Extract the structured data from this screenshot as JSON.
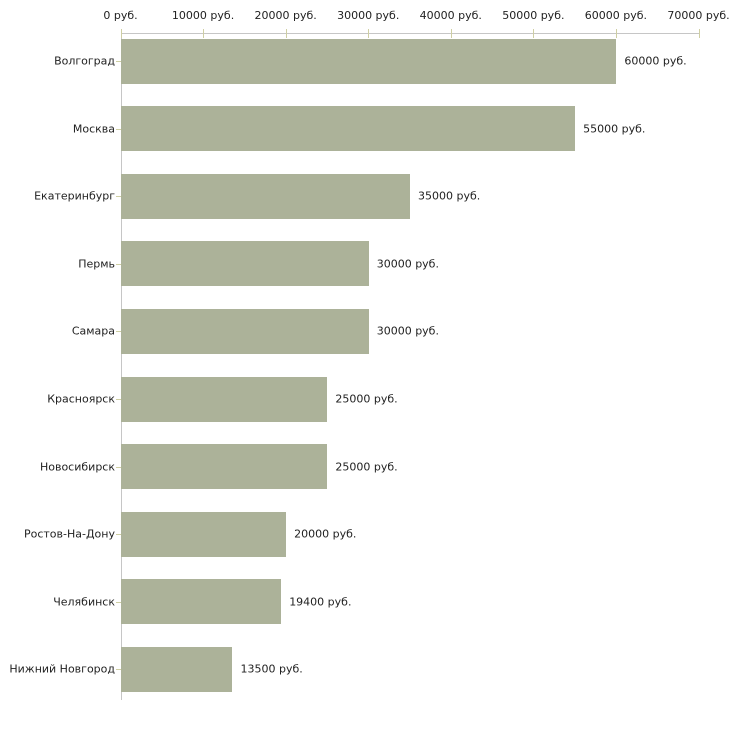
{
  "chart_data": {
    "type": "bar",
    "orientation": "horizontal",
    "title": "",
    "xlabel": "",
    "ylabel": "",
    "unit": "руб.",
    "grid": false,
    "legend": false,
    "xlim": [
      0,
      70000
    ],
    "categories": [
      "Волгоград",
      "Москва",
      "Екатеринбург",
      "Пермь",
      "Самара",
      "Красноярск",
      "Новосибирск",
      "Ростов-На-Дону",
      "Челябинск",
      "Нижний Новгород"
    ],
    "values": [
      60000,
      55000,
      35000,
      30000,
      30000,
      25000,
      25000,
      20000,
      19400,
      13500
    ],
    "value_labels": [
      "60000 руб.",
      "55000 руб.",
      "35000 руб.",
      "30000 руб.",
      "30000 руб.",
      "25000 руб.",
      "25000 руб.",
      "20000 руб.",
      "19400 руб.",
      "13500 руб."
    ],
    "x_ticks": [
      0,
      10000,
      20000,
      30000,
      40000,
      50000,
      60000,
      70000
    ],
    "x_tick_labels": [
      "0 руб.",
      "10000 руб.",
      "20000 руб.",
      "30000 руб.",
      "40000 руб.",
      "50000 руб.",
      "60000 руб.",
      "70000 руб."
    ],
    "colors": {
      "bar": "#acb299",
      "axis_line": "#c6c6c6",
      "tick_mark": "#cfcfa3",
      "text": "#222222",
      "background": "#ffffff"
    }
  }
}
